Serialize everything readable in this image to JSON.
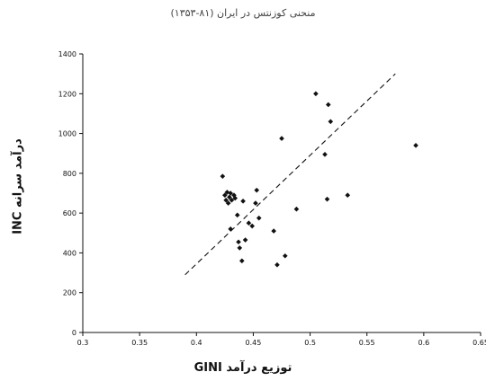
{
  "chart_data": {
    "type": "scatter",
    "title": "منحنی کوزنتس در ایران (۸۱-۱۳۵۳)",
    "xlabel": "توزیع درآمد GINI",
    "ylabel": "درآمد سرانه INC",
    "xlim": [
      0.3,
      0.65
    ],
    "ylim": [
      0,
      1400
    ],
    "xticks": [
      "0.3",
      "0.35",
      "0.4",
      "0.45",
      "0.5",
      "0.55",
      "0.6",
      "0.65"
    ],
    "yticks": [
      "0",
      "200",
      "400",
      "600",
      "800",
      "1000",
      "1200",
      "1400"
    ],
    "grid": false,
    "points": [
      {
        "x": 0.423,
        "y": 785
      },
      {
        "x": 0.425,
        "y": 690
      },
      {
        "x": 0.426,
        "y": 665
      },
      {
        "x": 0.427,
        "y": 705
      },
      {
        "x": 0.428,
        "y": 650
      },
      {
        "x": 0.429,
        "y": 680
      },
      {
        "x": 0.43,
        "y": 700
      },
      {
        "x": 0.431,
        "y": 665
      },
      {
        "x": 0.433,
        "y": 690
      },
      {
        "x": 0.434,
        "y": 675
      },
      {
        "x": 0.43,
        "y": 520
      },
      {
        "x": 0.436,
        "y": 590
      },
      {
        "x": 0.437,
        "y": 455
      },
      {
        "x": 0.438,
        "y": 425
      },
      {
        "x": 0.44,
        "y": 360
      },
      {
        "x": 0.441,
        "y": 660
      },
      {
        "x": 0.443,
        "y": 465
      },
      {
        "x": 0.446,
        "y": 550
      },
      {
        "x": 0.449,
        "y": 535
      },
      {
        "x": 0.452,
        "y": 650
      },
      {
        "x": 0.453,
        "y": 715
      },
      {
        "x": 0.455,
        "y": 575
      },
      {
        "x": 0.468,
        "y": 510
      },
      {
        "x": 0.471,
        "y": 340
      },
      {
        "x": 0.475,
        "y": 975
      },
      {
        "x": 0.478,
        "y": 385
      },
      {
        "x": 0.488,
        "y": 620
      },
      {
        "x": 0.505,
        "y": 1200
      },
      {
        "x": 0.513,
        "y": 895
      },
      {
        "x": 0.515,
        "y": 670
      },
      {
        "x": 0.516,
        "y": 1145
      },
      {
        "x": 0.518,
        "y": 1060
      },
      {
        "x": 0.533,
        "y": 690
      },
      {
        "x": 0.593,
        "y": 940
      }
    ],
    "trendline": {
      "style": "dashed",
      "x": [
        0.39,
        0.575
      ],
      "y": [
        290,
        1300
      ]
    }
  }
}
